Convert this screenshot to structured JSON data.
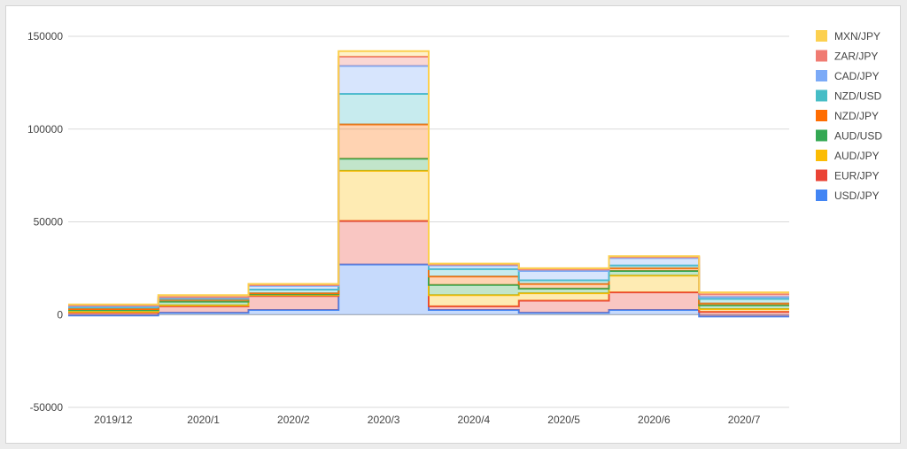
{
  "chart_data": {
    "type": "area",
    "stacked": true,
    "stepped": true,
    "categories": [
      "2019/12",
      "2020/1",
      "2020/2",
      "2020/3",
      "2020/4",
      "2020/5",
      "2020/6",
      "2020/7"
    ],
    "ylim": [
      -50000,
      150000
    ],
    "yticks": [
      {
        "value": 150000,
        "label": "150000"
      },
      {
        "value": 100000,
        "label": "100000"
      },
      {
        "value": 50000,
        "label": "50000"
      },
      {
        "value": 0,
        "label": "0"
      },
      {
        "value": -50000,
        "label": "-50000"
      }
    ],
    "grid": true,
    "legend_position": "right",
    "series": [
      {
        "name": "USD/JPY",
        "color": "#4285f4",
        "values": [
          -500,
          1000,
          2500,
          27000,
          2500,
          1000,
          2500,
          -1000
        ]
      },
      {
        "name": "EUR/JPY",
        "color": "#ea4335",
        "values": [
          1500,
          3500,
          7500,
          23500,
          2000,
          6500,
          9500,
          2500
        ]
      },
      {
        "name": "AUD/JPY",
        "color": "#fbbc04",
        "values": [
          500,
          500,
          500,
          27000,
          6000,
          4000,
          9000,
          1500
        ]
      },
      {
        "name": "AUD/USD",
        "color": "#34a853",
        "values": [
          1000,
          2000,
          500,
          6500,
          5500,
          2500,
          2500,
          2000
        ]
      },
      {
        "name": "NZD/JPY",
        "color": "#ff6d01",
        "values": [
          500,
          1000,
          500,
          18500,
          4500,
          2500,
          1500,
          1000
        ]
      },
      {
        "name": "NZD/USD",
        "color": "#46bdc6",
        "values": [
          1000,
          500,
          2000,
          16500,
          4000,
          2000,
          1500,
          2500
        ]
      },
      {
        "name": "CAD/JPY",
        "color": "#7baaf7",
        "values": [
          500,
          500,
          2000,
          15000,
          2000,
          5000,
          4000,
          1000
        ]
      },
      {
        "name": "ZAR/JPY",
        "color": "#f07b72",
        "values": [
          500,
          500,
          500,
          5000,
          500,
          1000,
          500,
          1500
        ]
      },
      {
        "name": "MXN/JPY",
        "color": "#fcd04f",
        "values": [
          500,
          1000,
          500,
          3000,
          500,
          500,
          500,
          1000
        ]
      }
    ]
  }
}
